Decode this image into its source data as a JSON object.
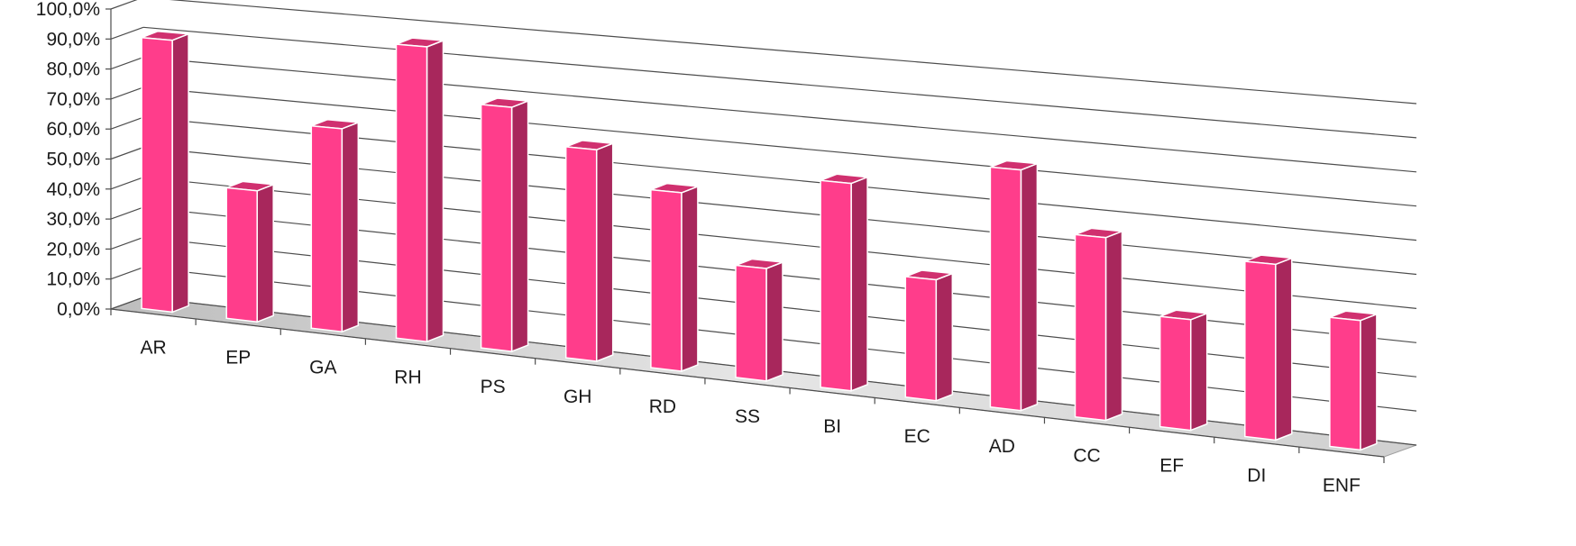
{
  "chart_data": {
    "type": "bar",
    "style": "3d-column",
    "categories": [
      "AR",
      "EP",
      "GA",
      "RH",
      "PS",
      "GH",
      "RD",
      "SS",
      "BI",
      "EC",
      "AD",
      "CC",
      "EF",
      "DI",
      "ENF"
    ],
    "series": [
      {
        "values": [
          90.0,
          43.0,
          66.0,
          95.0,
          78.0,
          67.0,
          56.0,
          35.0,
          64.0,
          37.0,
          73.0,
          55.0,
          33.0,
          52.0,
          38.0
        ]
      }
    ],
    "y_ticks": [
      "0,0%",
      "10,0%",
      "20,0%",
      "30,0%",
      "40,0%",
      "50,0%",
      "60,0%",
      "70,0%",
      "80,0%",
      "90,0%",
      "100,0%"
    ],
    "ylim": [
      0,
      100
    ],
    "grid": true,
    "legend": "none",
    "colors": {
      "bar_front": "#ff3d8b",
      "bar_side": "#a8275c",
      "bar_top": "#d0306f",
      "bar_outline": "#ffffff",
      "floor": "#c8c8c8",
      "grid": "#4d4d4d"
    }
  }
}
